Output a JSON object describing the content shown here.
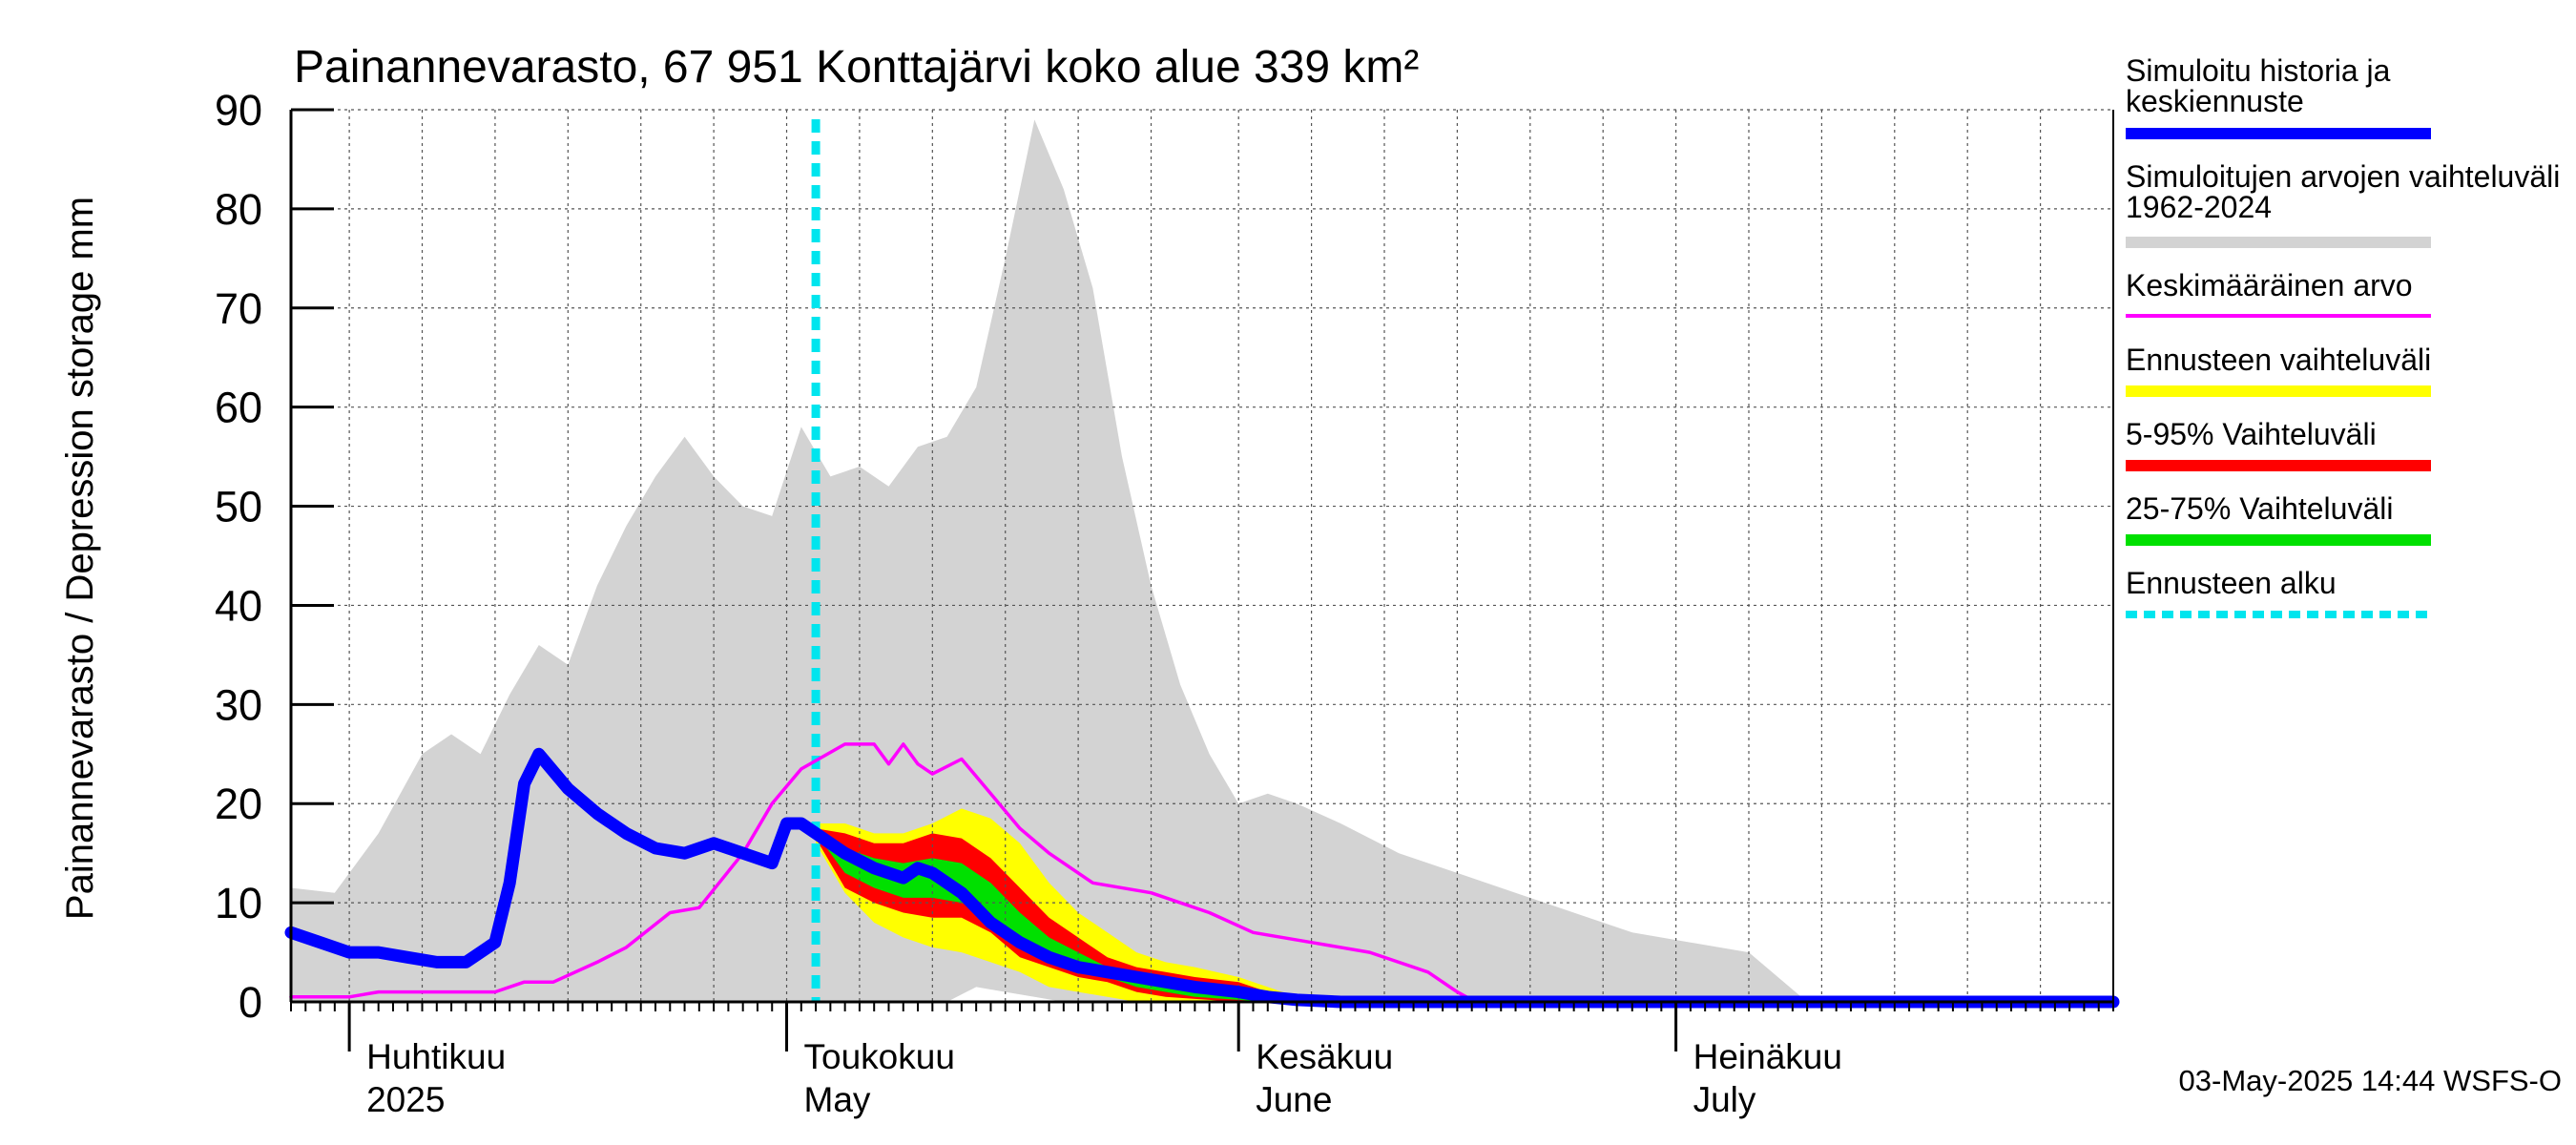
{
  "chart_data": {
    "type": "area",
    "title": "Painannevarasto, 67 951 Konttajärvi koko alue 339 km²",
    "ylabel": "Painannevarasto / Depression storage    mm",
    "ylim": [
      0,
      90
    ],
    "yticks": [
      "0",
      "10",
      "20",
      "30",
      "40",
      "50",
      "60",
      "70",
      "80",
      "90"
    ],
    "xlim": [
      "2025-03-28",
      "2025-07-31"
    ],
    "grid": true,
    "month_labels": [
      {
        "date": "2025-04-01",
        "line1": "Huhtikuu",
        "line2": "2025"
      },
      {
        "date": "2025-05-01",
        "line1": "Toukokuu",
        "line2": "May"
      },
      {
        "date": "2025-06-01",
        "line1": "Kesäkuu",
        "line2": "June"
      },
      {
        "date": "2025-07-01",
        "line1": "Heinäkuu",
        "line2": "July"
      }
    ],
    "forecast_start": "2025-05-03",
    "series": [
      {
        "name": "Simuloitujen arvojen vaihteluväli 1962-2024",
        "kind": "band",
        "color": "#d3d3d3",
        "x": [
          "2025-03-28",
          "2025-03-31",
          "2025-04-03",
          "2025-04-06",
          "2025-04-08",
          "2025-04-10",
          "2025-04-12",
          "2025-04-14",
          "2025-04-16",
          "2025-04-18",
          "2025-04-20",
          "2025-04-22",
          "2025-04-24",
          "2025-04-26",
          "2025-04-28",
          "2025-04-30",
          "2025-05-02",
          "2025-05-04",
          "2025-05-06",
          "2025-05-08",
          "2025-05-10",
          "2025-05-12",
          "2025-05-14",
          "2025-05-16",
          "2025-05-18",
          "2025-05-20",
          "2025-05-22",
          "2025-05-24",
          "2025-05-26",
          "2025-05-28",
          "2025-05-30",
          "2025-06-01",
          "2025-06-03",
          "2025-06-05",
          "2025-06-08",
          "2025-06-12",
          "2025-06-16",
          "2025-06-20",
          "2025-06-24",
          "2025-06-28",
          "2025-07-02",
          "2025-07-06",
          "2025-07-10",
          "2025-07-31"
        ],
        "upper": [
          11.5,
          11,
          17,
          25,
          27,
          25,
          31,
          36,
          34,
          42,
          48,
          53,
          57,
          53,
          50,
          49,
          58,
          53,
          54,
          52,
          56,
          57,
          62,
          75,
          89,
          82,
          72,
          55,
          42,
          32,
          25,
          20,
          21,
          20,
          18,
          15,
          13,
          11,
          9,
          7,
          6,
          5,
          0,
          0
        ],
        "lower": [
          0,
          0,
          0,
          0,
          0,
          0,
          0,
          0,
          0,
          0,
          0,
          0,
          0,
          0,
          0,
          0,
          0,
          0,
          0,
          0,
          0,
          0,
          1.5,
          1,
          0.5,
          0,
          0,
          0,
          0,
          0,
          0,
          0,
          0,
          0,
          0,
          0,
          0,
          0,
          0,
          0,
          0,
          0,
          0,
          0
        ]
      },
      {
        "name": "Ennusteen vaihteluväli",
        "kind": "band",
        "color": "#ffff00",
        "x": [
          "2025-05-03",
          "2025-05-05",
          "2025-05-07",
          "2025-05-09",
          "2025-05-11",
          "2025-05-13",
          "2025-05-15",
          "2025-05-17",
          "2025-05-19",
          "2025-05-21",
          "2025-05-23",
          "2025-05-25",
          "2025-05-27",
          "2025-05-29",
          "2025-06-01",
          "2025-06-03",
          "2025-06-05",
          "2025-06-08"
        ],
        "upper": [
          18,
          18,
          17,
          17,
          18,
          19.5,
          18.5,
          16,
          12,
          9,
          7,
          5,
          4,
          3.5,
          2.5,
          1.5,
          0.5,
          0
        ],
        "lower": [
          16,
          11,
          8,
          6.5,
          5.5,
          5,
          4,
          3,
          1.5,
          1,
          0.5,
          0,
          0,
          0,
          0,
          0,
          0,
          0
        ]
      },
      {
        "name": "5-95% Vaihteluväli",
        "kind": "band",
        "color": "#ff0000",
        "x": [
          "2025-05-03",
          "2025-05-05",
          "2025-05-07",
          "2025-05-09",
          "2025-05-11",
          "2025-05-13",
          "2025-05-15",
          "2025-05-17",
          "2025-05-19",
          "2025-05-21",
          "2025-05-23",
          "2025-05-25",
          "2025-05-27",
          "2025-05-29",
          "2025-06-01",
          "2025-06-03",
          "2025-06-05",
          "2025-06-08"
        ],
        "upper": [
          17.5,
          17,
          16,
          16,
          17,
          16.5,
          14.5,
          11.5,
          8.5,
          6.5,
          4.5,
          3.5,
          3,
          2.5,
          2,
          1,
          0.3,
          0
        ],
        "lower": [
          16.5,
          11.5,
          10,
          9,
          8.5,
          8.5,
          7,
          4.5,
          3.5,
          2.5,
          2,
          1,
          0.5,
          0.3,
          0,
          0,
          0,
          0
        ]
      },
      {
        "name": "25-75% Vaihteluväli",
        "kind": "band",
        "color": "#00e000",
        "x": [
          "2025-05-03",
          "2025-05-05",
          "2025-05-07",
          "2025-05-09",
          "2025-05-11",
          "2025-05-13",
          "2025-05-15",
          "2025-05-17",
          "2025-05-19",
          "2025-05-21",
          "2025-05-23",
          "2025-05-25",
          "2025-05-27",
          "2025-05-29",
          "2025-06-01",
          "2025-06-03",
          "2025-06-05",
          "2025-06-08"
        ],
        "upper": [
          17,
          15.5,
          14.5,
          14,
          14.5,
          14,
          12,
          9,
          6.5,
          5,
          3.5,
          2.5,
          2,
          1.5,
          1,
          0.5,
          0,
          0
        ],
        "lower": [
          17,
          13,
          11.5,
          10.5,
          10.5,
          10,
          8.5,
          6,
          4.5,
          3.5,
          2.5,
          1.5,
          1,
          0.5,
          0.2,
          0,
          0,
          0
        ]
      },
      {
        "name": "Keskimääräinen arvo",
        "kind": "line",
        "color": "#ff00ff",
        "x": [
          "2025-03-28",
          "2025-04-01",
          "2025-04-03",
          "2025-04-07",
          "2025-04-11",
          "2025-04-13",
          "2025-04-15",
          "2025-04-18",
          "2025-04-20",
          "2025-04-23",
          "2025-04-25",
          "2025-04-28",
          "2025-04-30",
          "2025-05-02",
          "2025-05-05",
          "2025-05-07",
          "2025-05-08",
          "2025-05-09",
          "2025-05-10",
          "2025-05-11",
          "2025-05-13",
          "2025-05-15",
          "2025-05-17",
          "2025-05-19",
          "2025-05-22",
          "2025-05-26",
          "2025-05-30",
          "2025-06-02",
          "2025-06-06",
          "2025-06-10",
          "2025-06-14",
          "2025-06-16",
          "2025-06-17",
          "2025-07-31"
        ],
        "y": [
          0.5,
          0.5,
          1,
          1,
          1,
          2,
          2,
          4,
          5.5,
          9,
          9.5,
          15,
          20,
          23.5,
          26,
          26,
          24,
          26,
          24,
          23,
          24.5,
          21,
          17.5,
          15,
          12,
          11,
          9,
          7,
          6,
          5,
          3,
          1,
          0.2,
          0.2
        ]
      },
      {
        "name": "Simuloitu historia ja keskiennuste",
        "kind": "line",
        "color": "#0000ff",
        "x": [
          "2025-03-28",
          "2025-03-30",
          "2025-04-01",
          "2025-04-03",
          "2025-04-05",
          "2025-04-07",
          "2025-04-09",
          "2025-04-10",
          "2025-04-11",
          "2025-04-12",
          "2025-04-13",
          "2025-04-14",
          "2025-04-16",
          "2025-04-18",
          "2025-04-20",
          "2025-04-22",
          "2025-04-24",
          "2025-04-26",
          "2025-04-28",
          "2025-04-30",
          "2025-05-01",
          "2025-05-02",
          "2025-05-03",
          "2025-05-05",
          "2025-05-07",
          "2025-05-09",
          "2025-05-10",
          "2025-05-11",
          "2025-05-13",
          "2025-05-15",
          "2025-05-17",
          "2025-05-19",
          "2025-05-21",
          "2025-05-23",
          "2025-05-25",
          "2025-05-27",
          "2025-05-29",
          "2025-06-01",
          "2025-06-03",
          "2025-06-05",
          "2025-06-08",
          "2025-07-31"
        ],
        "y": [
          7,
          6,
          5,
          5,
          4.5,
          4,
          4,
          5,
          6,
          12,
          22,
          25,
          21.5,
          19,
          17,
          15.5,
          15,
          16,
          15,
          14,
          18,
          18,
          17,
          15,
          13.5,
          12.5,
          13.5,
          13,
          11,
          8,
          6,
          4.5,
          3.5,
          3,
          2.5,
          2,
          1.5,
          1,
          0.5,
          0.2,
          0,
          0
        ]
      }
    ],
    "legend": {
      "placement": "right",
      "entries": [
        {
          "label": "Simuloitu historia ja keskiennuste",
          "color": "#0000ff",
          "style": "solid"
        },
        {
          "label": "Simuloitujen arvojen vaihteluväli 1962-2024",
          "color": "#d3d3d3",
          "style": "solid"
        },
        {
          "label": "Keskimääräinen arvo",
          "color": "#ff00ff",
          "style": "solid"
        },
        {
          "label": "Ennusteen vaihteluväli",
          "color": "#ffff00",
          "style": "solid"
        },
        {
          "label": "5-95% Vaihteluväli",
          "color": "#ff0000",
          "style": "solid"
        },
        {
          "label": "25-75% Vaihteluväli",
          "color": "#00e000",
          "style": "solid"
        },
        {
          "label": "Ennusteen alku",
          "color": "#00e5ee",
          "style": "dashed"
        }
      ]
    },
    "footer": "03-May-2025 14:44 WSFS-O"
  }
}
